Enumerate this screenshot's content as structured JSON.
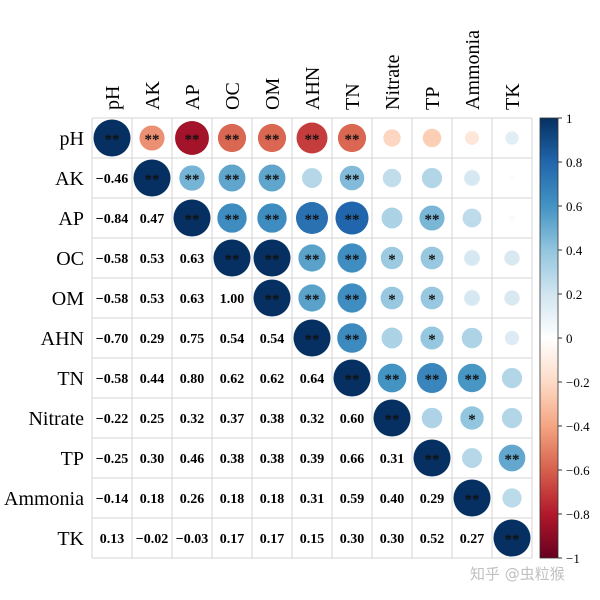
{
  "chart_data": {
    "type": "heatmap",
    "subtype": "correlation-matrix",
    "lower": "number",
    "upper": "circle",
    "variables": [
      "pH",
      "AK",
      "AP",
      "OC",
      "OM",
      "AHN",
      "TN",
      "Nitrate",
      "TP",
      "Ammonia",
      "TK"
    ],
    "matrix": [
      [
        1.0,
        -0.46,
        -0.84,
        -0.58,
        -0.58,
        -0.7,
        -0.58,
        -0.22,
        -0.25,
        -0.14,
        0.13
      ],
      [
        -0.46,
        1.0,
        0.47,
        0.53,
        0.53,
        0.29,
        0.44,
        0.25,
        0.3,
        0.18,
        -0.02
      ],
      [
        -0.84,
        0.47,
        1.0,
        0.63,
        0.63,
        0.75,
        0.8,
        0.32,
        0.46,
        0.26,
        -0.03
      ],
      [
        -0.58,
        0.53,
        0.63,
        1.0,
        1.0,
        0.54,
        0.62,
        0.37,
        0.38,
        0.18,
        0.17
      ],
      [
        -0.58,
        0.53,
        0.63,
        1.0,
        1.0,
        0.54,
        0.62,
        0.38,
        0.38,
        0.18,
        0.17
      ],
      [
        -0.7,
        0.29,
        0.75,
        0.54,
        0.54,
        1.0,
        0.64,
        0.32,
        0.39,
        0.31,
        0.15
      ],
      [
        -0.58,
        0.44,
        0.8,
        0.62,
        0.62,
        0.64,
        1.0,
        0.6,
        0.66,
        0.59,
        0.3
      ],
      [
        -0.22,
        0.25,
        0.32,
        0.37,
        0.38,
        0.32,
        0.6,
        1.0,
        0.31,
        0.4,
        0.3
      ],
      [
        -0.25,
        0.3,
        0.46,
        0.38,
        0.38,
        0.39,
        0.66,
        0.31,
        1.0,
        0.29,
        0.52
      ],
      [
        -0.14,
        0.18,
        0.26,
        0.18,
        0.18,
        0.31,
        0.59,
        0.4,
        0.29,
        1.0,
        0.27
      ],
      [
        0.13,
        -0.02,
        -0.03,
        0.17,
        0.17,
        0.15,
        0.3,
        0.3,
        0.52,
        0.27,
        1.0
      ]
    ],
    "lower_labels": [
      [
        "",
        "",
        "",
        "",
        "",
        "",
        "",
        "",
        "",
        "",
        ""
      ],
      [
        "−0.46",
        "",
        "",
        "",
        "",
        "",
        "",
        "",
        "",
        "",
        ""
      ],
      [
        "−0.84",
        "0.47",
        "",
        "",
        "",
        "",
        "",
        "",
        "",
        "",
        ""
      ],
      [
        "−0.58",
        "0.53",
        "0.63",
        "",
        "",
        "",
        "",
        "",
        "",
        "",
        ""
      ],
      [
        "−0.58",
        "0.53",
        "0.63",
        "1.00",
        "",
        "",
        "",
        "",
        "",
        "",
        ""
      ],
      [
        "−0.70",
        "0.29",
        "0.75",
        "0.54",
        "0.54",
        "",
        "",
        "",
        "",
        "",
        ""
      ],
      [
        "−0.58",
        "0.44",
        "0.80",
        "0.62",
        "0.62",
        "0.64",
        "",
        "",
        "",
        "",
        ""
      ],
      [
        "−0.22",
        "0.25",
        "0.32",
        "0.37",
        "0.38",
        "0.32",
        "0.60",
        "",
        "",
        "",
        ""
      ],
      [
        "−0.25",
        "0.30",
        "0.46",
        "0.38",
        "0.38",
        "0.39",
        "0.66",
        "0.31",
        "",
        "",
        ""
      ],
      [
        "−0.14",
        "0.18",
        "0.26",
        "0.18",
        "0.18",
        "0.31",
        "0.59",
        "0.40",
        "0.29",
        "",
        ""
      ],
      [
        "0.13",
        "−0.02",
        "−0.03",
        "0.17",
        "0.17",
        "0.15",
        "0.30",
        "0.30",
        "0.52",
        "0.27",
        ""
      ]
    ],
    "significance": [
      [
        "**",
        "**",
        "**",
        "**",
        "**",
        "**",
        "**",
        "",
        "",
        "",
        ""
      ],
      [
        "",
        "**",
        "**",
        "**",
        "**",
        "",
        "**",
        "",
        "",
        "",
        ""
      ],
      [
        "",
        "",
        "**",
        "**",
        "**",
        "**",
        "**",
        "",
        "**",
        "",
        ""
      ],
      [
        "",
        "",
        "",
        "**",
        "**",
        "**",
        "**",
        "*",
        "*",
        "",
        ""
      ],
      [
        "",
        "",
        "",
        "",
        "**",
        "**",
        "**",
        "*",
        "*",
        "",
        ""
      ],
      [
        "",
        "",
        "",
        "",
        "",
        "**",
        "**",
        "",
        "*",
        "",
        ""
      ],
      [
        "",
        "",
        "",
        "",
        "",
        "",
        "**",
        "**",
        "**",
        "**",
        ""
      ],
      [
        "",
        "",
        "",
        "",
        "",
        "",
        "",
        "**",
        "",
        "*",
        ""
      ],
      [
        "",
        "",
        "",
        "",
        "",
        "",
        "",
        "",
        "**",
        "",
        "**"
      ],
      [
        "",
        "",
        "",
        "",
        "",
        "",
        "",
        "",
        "",
        "**",
        ""
      ],
      [
        "",
        "",
        "",
        "",
        "",
        "",
        "",
        "",
        "",
        "",
        "**"
      ]
    ],
    "colorbar": {
      "range": [
        -1,
        1
      ],
      "ticks": [
        1,
        0.8,
        0.6,
        0.4,
        0.2,
        0,
        -0.2,
        -0.4,
        -0.6,
        -0.8,
        -1
      ],
      "tick_labels": [
        "1",
        "0.8",
        "0.6",
        "0.4",
        "0.2",
        "0",
        "−0.2",
        "−0.4",
        "−0.6",
        "−0.8",
        "−1"
      ],
      "low_color": "#67001f",
      "high_color": "#053061"
    },
    "palette": [
      "#67001f",
      "#b2182b",
      "#d6604d",
      "#f4a582",
      "#fddbc7",
      "#ffffff",
      "#d1e5f0",
      "#92c5de",
      "#4393c3",
      "#2166ac",
      "#053061"
    ]
  },
  "watermark": "知乎 @虫粒猴"
}
